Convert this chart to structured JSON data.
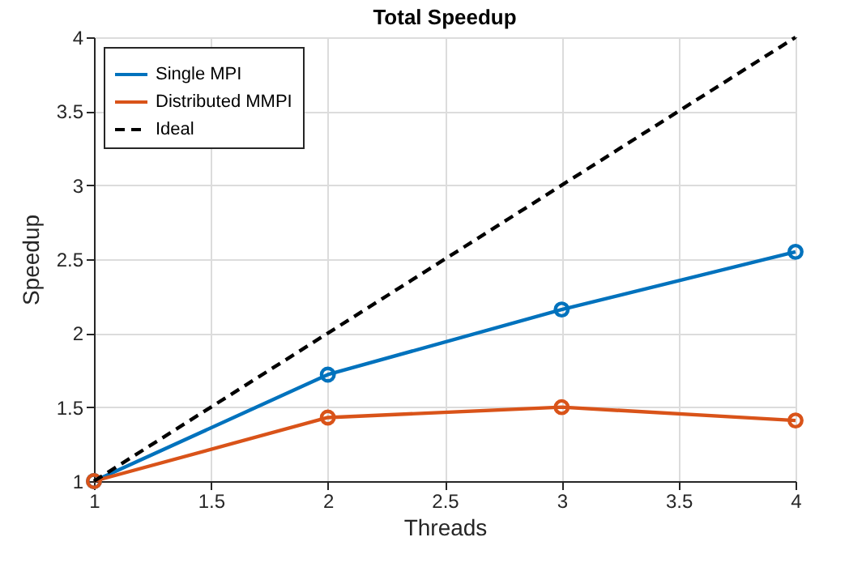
{
  "chart_data": {
    "type": "line",
    "title": "Total Speedup",
    "xlabel": "Threads",
    "ylabel": "Speedup",
    "x": [
      1,
      2,
      3,
      4
    ],
    "series": [
      {
        "name": "Single MPI",
        "color": "#0072bd",
        "values": [
          1,
          1.72,
          2.16,
          2.55
        ],
        "marker": "circle",
        "line_style": "solid"
      },
      {
        "name": "Distributed MMPI",
        "color": "#d95319",
        "values": [
          1,
          1.43,
          1.5,
          1.41
        ],
        "marker": "circle",
        "line_style": "solid"
      },
      {
        "name": "Ideal",
        "color": "#000000",
        "values": [
          1,
          2,
          3,
          4
        ],
        "marker": "none",
        "line_style": "dashed"
      }
    ],
    "xlim": [
      1,
      4
    ],
    "ylim": [
      1,
      4
    ],
    "xticks": [
      1,
      1.5,
      2,
      2.5,
      3,
      3.5,
      4
    ],
    "yticks": [
      1,
      1.5,
      2,
      2.5,
      3,
      3.5,
      4
    ],
    "grid": true,
    "legend": "top left"
  }
}
